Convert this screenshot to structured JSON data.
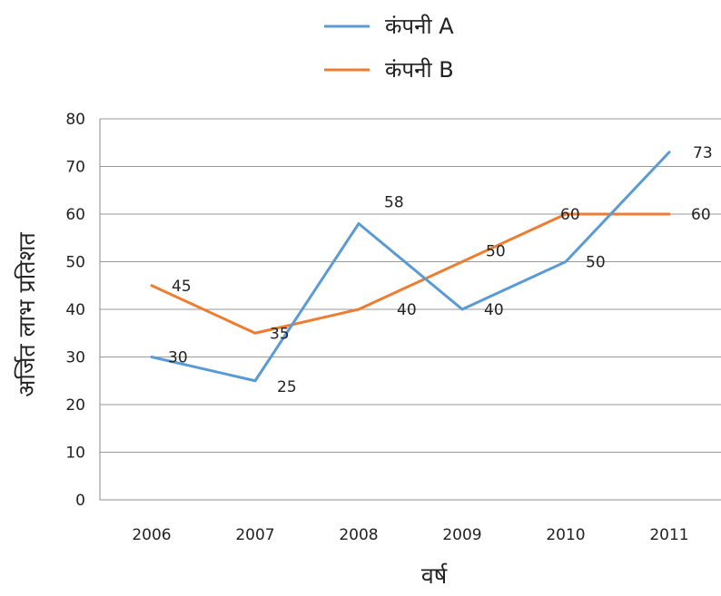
{
  "chart_data": {
    "type": "line",
    "categories": [
      "2006",
      "2007",
      "2008",
      "2009",
      "2010",
      "2011"
    ],
    "series": [
      {
        "name": "कंपनी A",
        "values": [
          30,
          25,
          58,
          40,
          50,
          73
        ],
        "color": "#5B9BD5"
      },
      {
        "name": "कंपनी B",
        "values": [
          45,
          35,
          40,
          50,
          60,
          60
        ],
        "color": "#ED7D31"
      }
    ],
    "xlabel": "वर्ष",
    "ylabel": "अर्जित लाभ प्रतिशत",
    "ylim": [
      0,
      80
    ],
    "yticks": [
      0,
      10,
      20,
      30,
      40,
      50,
      60,
      70,
      80
    ],
    "grid": true,
    "legend": "top"
  }
}
